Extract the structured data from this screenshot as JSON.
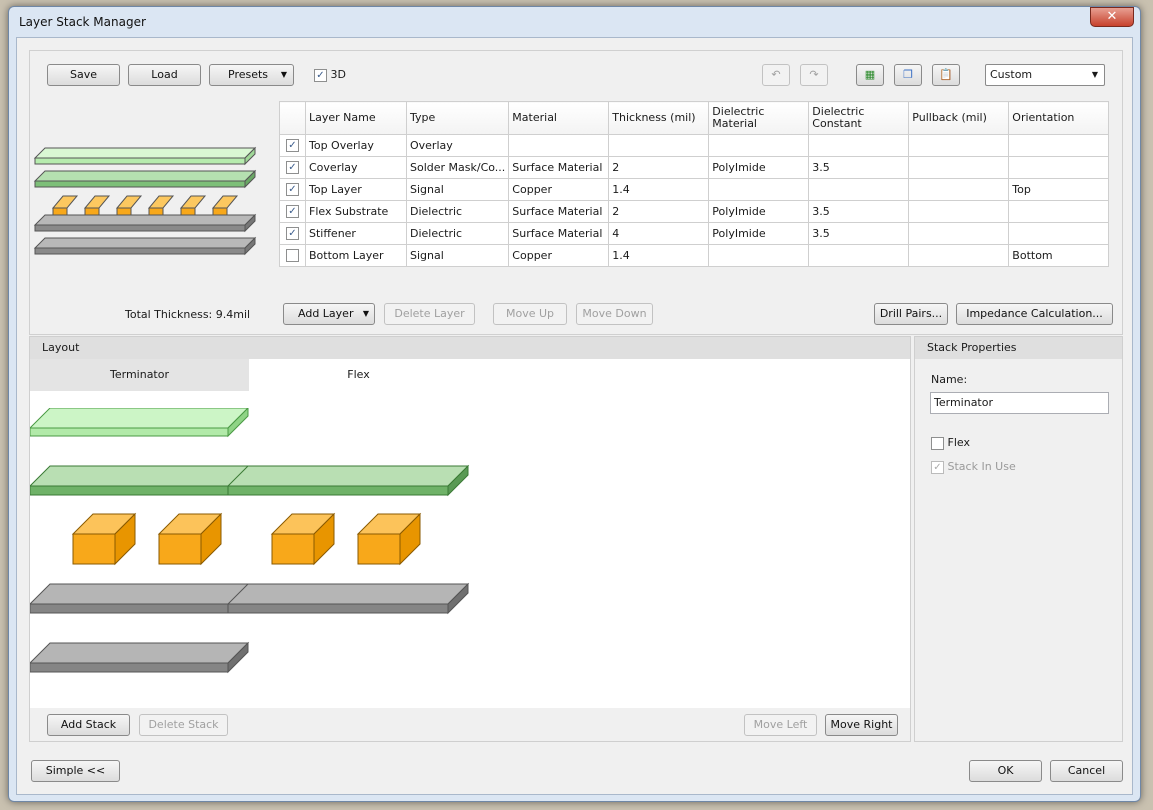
{
  "window": {
    "title": "Layer Stack Manager",
    "close": "✕"
  },
  "toolbar": {
    "save": "Save",
    "load": "Load",
    "presets": "Presets",
    "three_d": "3D",
    "three_d_checked": true,
    "preset_select": "Custom",
    "icons": [
      "undo-icon",
      "redo-icon",
      "export-excel-icon",
      "copy-icon",
      "paste-icon"
    ]
  },
  "table": {
    "headers": [
      "Layer Name",
      "Type",
      "Material",
      "Thickness (mil)",
      "Dielectric Material",
      "Dielectric Constant",
      "Pullback (mil)",
      "Orientation"
    ],
    "rows": [
      {
        "checked": true,
        "name": "Top Overlay",
        "type": "Overlay",
        "material": "",
        "thickness": "",
        "diel_mat": "",
        "diel_const": "",
        "pullback": "",
        "orientation": ""
      },
      {
        "checked": true,
        "name": "Coverlay",
        "type": "Solder Mask/Co...",
        "material": "Surface Material",
        "thickness": "2",
        "diel_mat": "PolyImide",
        "diel_const": "3.5",
        "pullback": "",
        "orientation": ""
      },
      {
        "checked": true,
        "name": "Top Layer",
        "type": "Signal",
        "material": "Copper",
        "thickness": "1.4",
        "diel_mat": "",
        "diel_const": "",
        "pullback": "",
        "orientation": "Top"
      },
      {
        "checked": true,
        "name": "Flex Substrate",
        "type": "Dielectric",
        "material": "Surface Material",
        "thickness": "2",
        "diel_mat": "PolyImide",
        "diel_const": "3.5",
        "pullback": "",
        "orientation": ""
      },
      {
        "checked": true,
        "name": "Stiffener",
        "type": "Dielectric",
        "material": "Surface Material",
        "thickness": "4",
        "diel_mat": "PolyImide",
        "diel_const": "3.5",
        "pullback": "",
        "orientation": ""
      },
      {
        "checked": false,
        "name": "Bottom Layer",
        "type": "Signal",
        "material": "Copper",
        "thickness": "1.4",
        "diel_mat": "",
        "diel_const": "",
        "pullback": "",
        "orientation": "Bottom"
      }
    ]
  },
  "actions": {
    "total_thickness": "Total Thickness: 9.4mil",
    "add_layer": "Add Layer",
    "delete_layer": "Delete Layer",
    "move_up": "Move Up",
    "move_down": "Move Down",
    "drill_pairs": "Drill Pairs...",
    "impedance": "Impedance Calculation..."
  },
  "layout": {
    "header": "Layout",
    "tabs": [
      "Terminator",
      "Flex"
    ],
    "add_stack": "Add Stack",
    "delete_stack": "Delete Stack",
    "move_left": "Move Left",
    "move_right": "Move Right"
  },
  "stack_properties": {
    "header": "Stack Properties",
    "name_label": "Name:",
    "name_value": "Terminator",
    "flex_label": "Flex",
    "flex_checked": false,
    "in_use_label": "Stack In Use",
    "in_use_checked": true
  },
  "footer": {
    "simple": "Simple <<",
    "ok": "OK",
    "cancel": "Cancel"
  },
  "colors": {
    "overlay": "#c6f0c0",
    "coverlay": "#8fca8a",
    "copper": "#f8a81a",
    "dielectric": "#9a9a9a"
  }
}
